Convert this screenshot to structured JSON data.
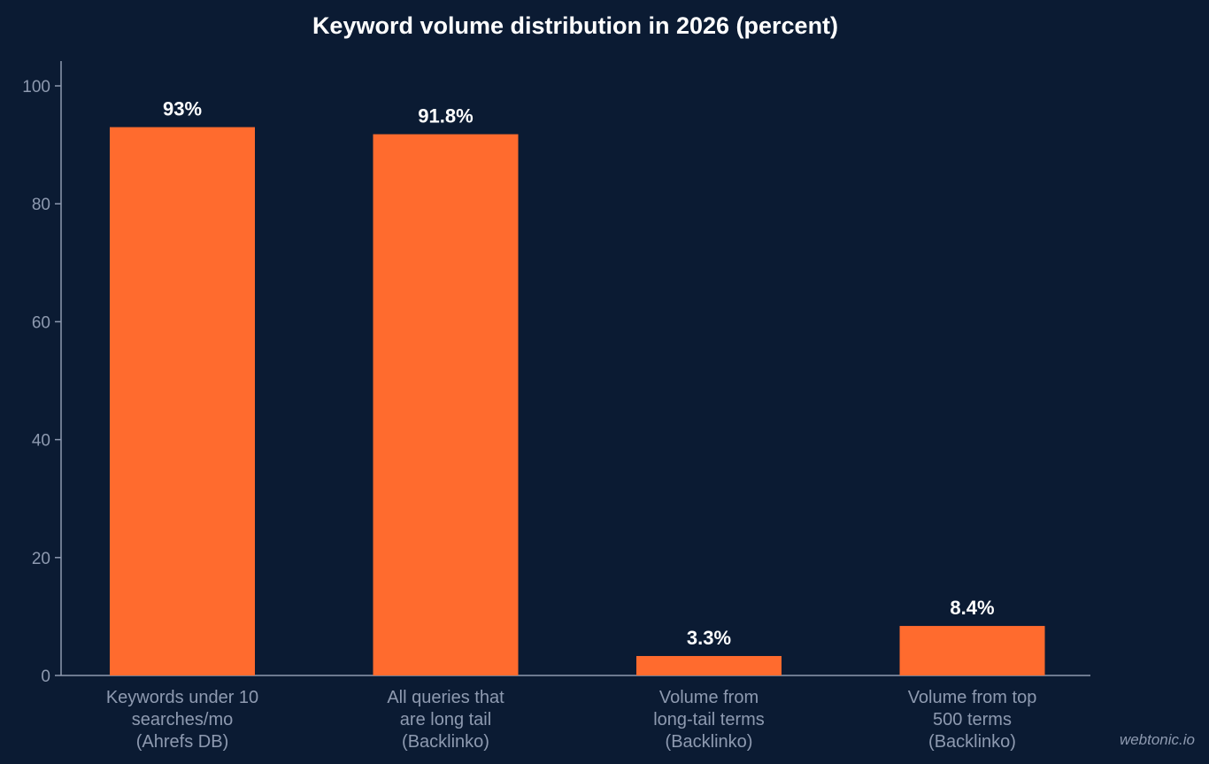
{
  "chart_data": {
    "type": "bar",
    "title": "Keyword volume distribution in 2026 (percent)",
    "categories": [
      [
        "Keywords under 10",
        "searches/mo",
        "(Ahrefs DB)"
      ],
      [
        "All queries that",
        "are long tail",
        "(Backlinko)"
      ],
      [
        "Volume from",
        "long-tail terms",
        "(Backlinko)"
      ],
      [
        "Volume from top",
        "500 terms",
        "(Backlinko)"
      ]
    ],
    "values": [
      93,
      91.8,
      3.3,
      8.4
    ],
    "data_labels": [
      "93%",
      "91.8%",
      "3.3%",
      "8.4%"
    ],
    "yticks": [
      0,
      20,
      40,
      60,
      80,
      100
    ],
    "ylim": [
      0,
      104
    ],
    "xlabel": "",
    "ylabel": "",
    "grid": false,
    "bar_color": "#ff6b2e",
    "background_color": "#0b1b33"
  },
  "watermark": "webtonic.io"
}
